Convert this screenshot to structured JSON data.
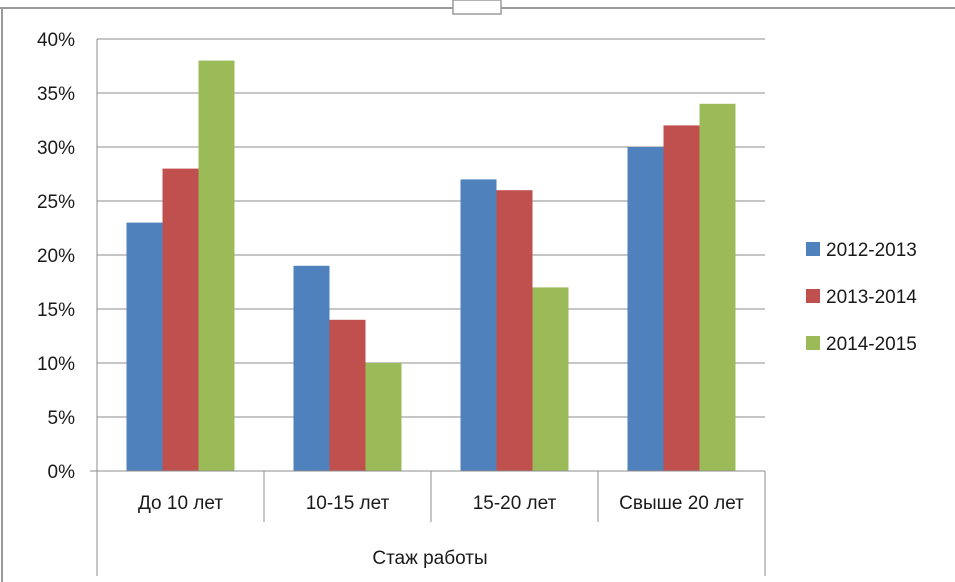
{
  "chart_data": {
    "type": "bar",
    "title": "",
    "xlabel": "Стаж работы",
    "ylabel": "",
    "ylim": [
      0,
      40
    ],
    "yticks": [
      "0%",
      "5%",
      "10%",
      "15%",
      "20%",
      "25%",
      "30%",
      "35%",
      "40%"
    ],
    "grid": true,
    "legend_position": "right",
    "categories": [
      "До 10 лет",
      "10-15 лет",
      "15-20 лет",
      "Свыше 20 лет"
    ],
    "series": [
      {
        "name": "2012-2013",
        "color": "#4f81bd",
        "values": [
          23,
          19,
          27,
          30
        ]
      },
      {
        "name": "2013-2014",
        "color": "#c0504d",
        "values": [
          28,
          14,
          26,
          32
        ]
      },
      {
        "name": "2014-2015",
        "color": "#9bbb59",
        "values": [
          38,
          10,
          17,
          34
        ]
      }
    ]
  }
}
